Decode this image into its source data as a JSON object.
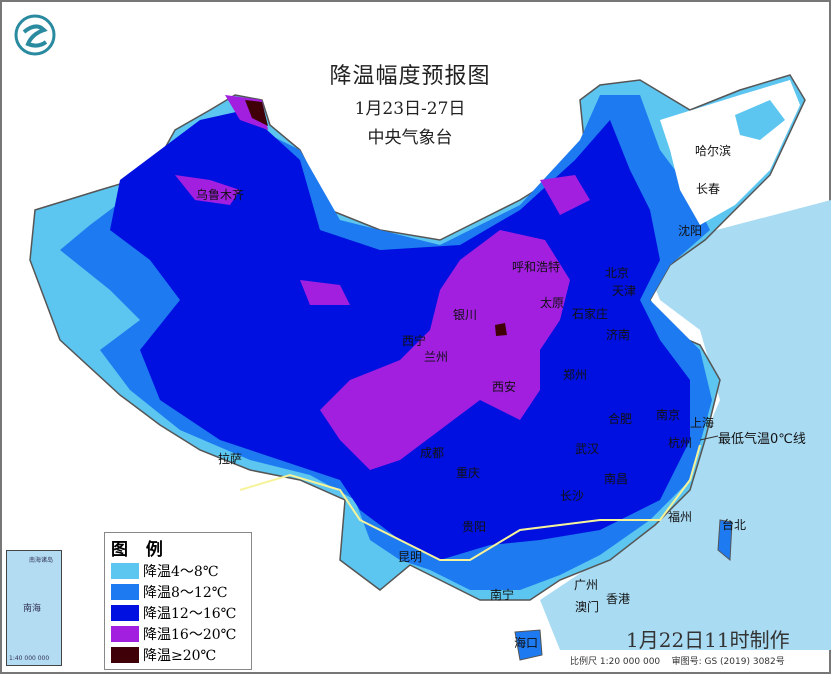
{
  "title": {
    "main": "降温幅度预报图",
    "dates": "1月23日-27日",
    "agency": "中央气象台"
  },
  "legend": {
    "heading": "图 例",
    "items": [
      {
        "label": "降温4～8℃",
        "color": "#5cc6f0"
      },
      {
        "label": "降温8～12℃",
        "color": "#1e7af0"
      },
      {
        "label": "降温12～16℃",
        "color": "#0010e0"
      },
      {
        "label": "降温16～20℃",
        "color": "#a21fe0"
      },
      {
        "label": "降温≥20℃",
        "color": "#3f0008"
      }
    ]
  },
  "colors": {
    "sea": "#a9dbf3",
    "land_outside": "#ffffff",
    "zero_line": "#f6f39a"
  },
  "annotation": "最低气温0℃线",
  "cities": [
    "乌鲁木齐",
    "哈尔滨",
    "长春",
    "沈阳",
    "呼和浩特",
    "北京",
    "天津",
    "太原",
    "石家庄",
    "银川",
    "西宁",
    "兰州",
    "济南",
    "郑州",
    "西安",
    "南京",
    "上海",
    "合肥",
    "杭州",
    "武汉",
    "拉萨",
    "成都",
    "重庆",
    "长沙",
    "南昌",
    "贵阳",
    "福州",
    "台北",
    "昆明",
    "南宁",
    "广州",
    "香港",
    "澳门",
    "海口"
  ],
  "inset": {
    "sea_label": "南海",
    "islands_label": "南海诸岛",
    "scale": "1:40 000 000"
  },
  "made_time": "1月22日11时制作",
  "scale": "比例尺 1:20 000 000",
  "review_no": "审图号: GS (2019) 3082号"
}
